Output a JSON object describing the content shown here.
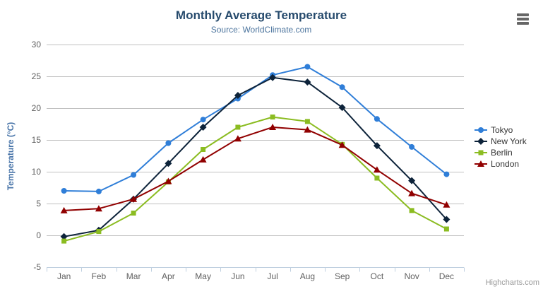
{
  "chart_data": {
    "type": "line",
    "title": "Monthly Average Temperature",
    "subtitle": "Source: WorldClimate.com",
    "xlabel": "",
    "ylabel": "Temperature (°C)",
    "categories": [
      "Jan",
      "Feb",
      "Mar",
      "Apr",
      "May",
      "Jun",
      "Jul",
      "Aug",
      "Sep",
      "Oct",
      "Nov",
      "Dec"
    ],
    "yticks": [
      -5,
      0,
      5,
      10,
      15,
      20,
      25,
      30
    ],
    "ylim": [
      -5,
      30
    ],
    "grid": true,
    "legend_position": "right",
    "series": [
      {
        "name": "Tokyo",
        "color": "#2f7ed8",
        "marker": "circle",
        "values": [
          7.0,
          6.9,
          9.5,
          14.5,
          18.2,
          21.5,
          25.2,
          26.5,
          23.3,
          18.3,
          13.9,
          9.6
        ]
      },
      {
        "name": "New York",
        "color": "#0d233a",
        "marker": "diamond",
        "values": [
          -0.2,
          0.8,
          5.7,
          11.3,
          17.0,
          22.0,
          24.8,
          24.1,
          20.1,
          14.1,
          8.6,
          2.5
        ]
      },
      {
        "name": "Berlin",
        "color": "#8bbc21",
        "marker": "square",
        "values": [
          -0.9,
          0.6,
          3.5,
          8.4,
          13.5,
          17.0,
          18.6,
          17.9,
          14.3,
          9.0,
          3.9,
          1.0
        ]
      },
      {
        "name": "London",
        "color": "#910000",
        "marker": "triangle",
        "values": [
          3.9,
          4.2,
          5.7,
          8.5,
          11.9,
          15.2,
          17.0,
          16.6,
          14.2,
          10.3,
          6.6,
          4.8
        ]
      }
    ]
  },
  "icons": {
    "export_menu": "hamburger-icon"
  },
  "credit": {
    "label": "Highcharts.com"
  },
  "colors": {
    "title": "#274b6d",
    "subtitle": "#4d759e",
    "yaxis_title": "#4572a7",
    "axis_label": "#606060",
    "axis_line": "#c0d0e0",
    "gridline": "#c0c0c0",
    "legend_text": "#333333",
    "credit_text": "#999999",
    "menu_icon": "#666666"
  }
}
